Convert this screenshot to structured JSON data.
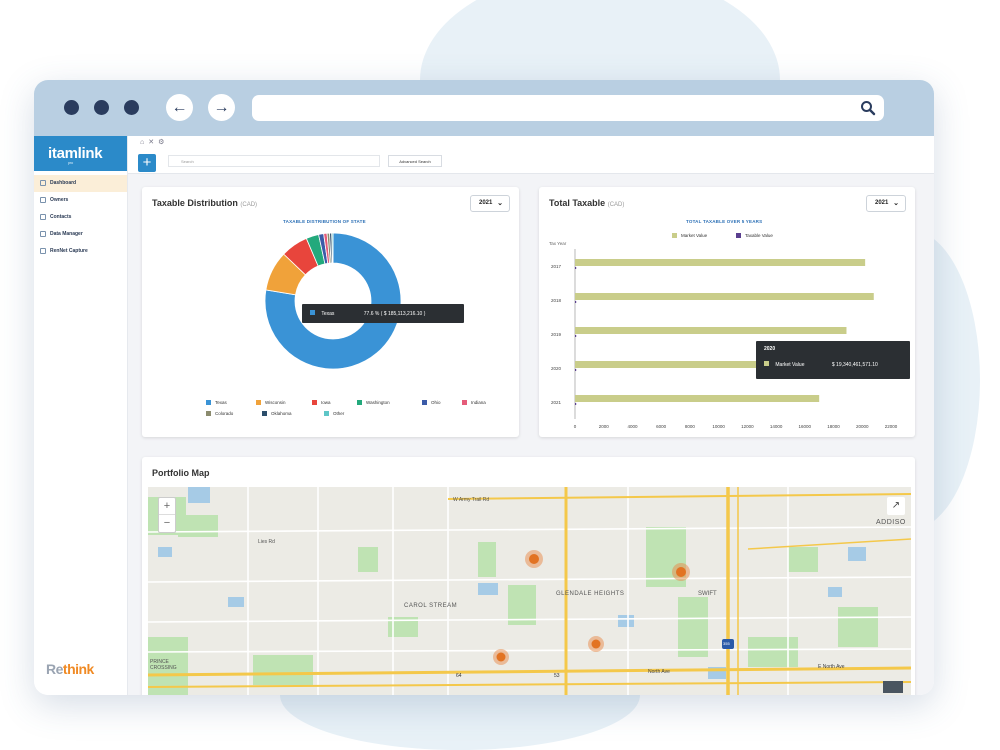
{
  "sidebar": {
    "logo": "itamlink",
    "logo_sub": "pro",
    "items": [
      {
        "label": "Dashboard",
        "active": true
      },
      {
        "label": "Owners",
        "active": false
      },
      {
        "label": "Contacts",
        "active": false
      },
      {
        "label": "Data Manager",
        "active": false
      },
      {
        "label": "RenNet Capture",
        "active": false
      }
    ],
    "brand": {
      "part1": "Re",
      "part2": "think"
    }
  },
  "toolbar": {
    "search_placeholder": "Search",
    "advanced_search_label": "Advanced Search",
    "add_label": "+"
  },
  "taxable_distribution": {
    "title": "Taxable Distribution",
    "unit": "(CAD)",
    "year": "2021",
    "subtitle": "TAXABLE DISTRIBUTION OF STATE",
    "tooltip": {
      "name": "Texas",
      "value": "77.6 % ( $ 185,113,216.10 )"
    },
    "legend": [
      "Texas",
      "Wisconsin",
      "Iowa",
      "Washington",
      "Ohio",
      "Indiana",
      "Colorado",
      "Oklahoma",
      "Other"
    ]
  },
  "total_taxable": {
    "title": "Total Taxable",
    "unit": "(CAD)",
    "year": "2021",
    "subtitle": "TOTAL TAXABLE OVER 5 YEARS",
    "legend": [
      "Market Value",
      "Taxable Value"
    ],
    "axis_title": "Tax Year",
    "tooltip": {
      "year": "2020",
      "label": "Market Value",
      "value": "$ 19,340,461,571.10"
    }
  },
  "portfolio_map": {
    "title": "Portfolio Map",
    "labels": {
      "w_army_trail": "W Army Trail Rd",
      "carol_stream": "CAROL STREAM",
      "glendale_heights": "GLENDALE HEIGHTS",
      "swift": "SWIFT",
      "addison": "ADDISO",
      "north_ave": "North Ave",
      "e_north_ave": "E North Ave",
      "prince_crossing": "PRINCE CROSSING",
      "lies_rd": "Lies Rd",
      "route_64": "64",
      "route_53": "53",
      "i355": "355"
    },
    "zoom_in": "+",
    "zoom_out": "−"
  },
  "colors": {
    "brand_blue": "#2b8ac9",
    "texas": "#3a93d6",
    "wisconsin": "#f0a23a",
    "iowa": "#e8453c",
    "washington": "#23a97c",
    "ohio": "#3b5ba8",
    "indiana": "#e55c7a",
    "colorado": "#8b8b6e",
    "oklahoma": "#2c4e6b",
    "other": "#5ec6c7",
    "market_value": "#c9cd8a",
    "taxable_value": "#5a3f8f"
  },
  "chart_data": [
    {
      "type": "pie",
      "title": "TAXABLE DISTRIBUTION OF STATE",
      "categories": [
        "Texas",
        "Wisconsin",
        "Iowa",
        "Washington",
        "Ohio",
        "Indiana",
        "Colorado",
        "Oklahoma",
        "Other"
      ],
      "values": [
        77.6,
        9.5,
        6.5,
        3.0,
        1.2,
        0.8,
        0.6,
        0.5,
        0.3
      ]
    },
    {
      "type": "bar",
      "title": "TOTAL TAXABLE OVER 5 YEARS",
      "ylabel": "Tax Year",
      "categories": [
        "2017",
        "2018",
        "2019",
        "2020",
        "2021"
      ],
      "series": [
        {
          "name": "Market Value",
          "values": [
            20200,
            20800,
            18900,
            19340,
            17000
          ]
        },
        {
          "name": "Taxable Value",
          "values": [
            0,
            0,
            0,
            0,
            0
          ]
        }
      ],
      "xticks": [
        "0",
        "2000",
        "4000",
        "6000",
        "8000",
        "10000",
        "12000",
        "14000",
        "16000",
        "18000",
        "20000",
        "22000"
      ],
      "xlim": [
        0,
        22000
      ]
    }
  ]
}
